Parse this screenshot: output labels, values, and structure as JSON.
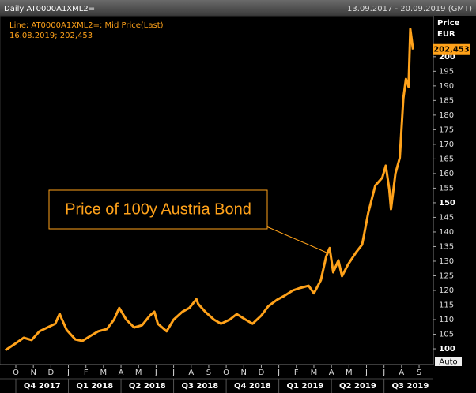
{
  "chart_data": {
    "type": "line",
    "header_left": "Daily AT0000A1XML2=",
    "header_right": "13.09.2017 - 20.09.2019 (GMT)",
    "legend_lines": [
      "Line; AT0000A1XML2=; Mid Price(Last)",
      "16.08.2019; 202,453"
    ],
    "axis_title": [
      "Price",
      "EUR"
    ],
    "annotation": "Price of 100y Austria Bond",
    "auto_label": "Auto",
    "color": "#ffa21a",
    "x": [
      0.4,
      1,
      1.45,
      1.9,
      2.35,
      2.8,
      3.25,
      3.5,
      3.6,
      3.9,
      4.4,
      4.8,
      5.3,
      5.7,
      6.2,
      6.6,
      6.9,
      7.3,
      7.75,
      8.2,
      8.65,
      8.9,
      9.1,
      9.6,
      10,
      10.5,
      10.9,
      11.3,
      11.4,
      11.8,
      12.3,
      12.7,
      13.2,
      13.6,
      14.1,
      14.5,
      15,
      15.4,
      15.9,
      16.3,
      16.8,
      17.2,
      17.7,
      18,
      18.4,
      18.7,
      18.9,
      19.1,
      19.4,
      19.6,
      19.95,
      20.4,
      20.75,
      21.1,
      21.5,
      21.9,
      22.1,
      22.3,
      22.4,
      22.65,
      22.9,
      23.1,
      23.25,
      23.4,
      23.5,
      23.65
    ],
    "values": [
      99.5,
      101.9,
      103.8,
      103,
      106,
      107.3,
      108.6,
      112,
      110.5,
      106.5,
      103.2,
      102.7,
      104.6,
      106,
      106.8,
      110,
      114,
      110,
      107.3,
      108.1,
      111.4,
      112.7,
      108.6,
      106,
      110,
      112.7,
      114,
      117,
      115.4,
      112.7,
      110,
      108.6,
      110,
      111.9,
      110,
      108.6,
      111.4,
      114.6,
      116.8,
      118.1,
      120,
      120.8,
      121.6,
      119,
      123.5,
      131.6,
      134.5,
      126.2,
      130.3,
      124.9,
      128.9,
      133,
      135.7,
      146.5,
      155.9,
      158.6,
      162.7,
      154.6,
      147.8,
      160,
      165.4,
      185.7,
      192.4,
      189.7,
      209.5,
      202.453
    ],
    "price_flag": {
      "value": 202.453,
      "label": "202,453"
    },
    "xlim": [
      0.4,
      24.63
    ],
    "ylim": [
      96.5,
      214
    ],
    "yticks": [
      100,
      105,
      110,
      115,
      120,
      125,
      130,
      135,
      140,
      145,
      150,
      155,
      160,
      165,
      170,
      175,
      180,
      185,
      190,
      195,
      200
    ],
    "bold_yticks": [
      100,
      150,
      200
    ],
    "xticks": [
      {
        "value": 1,
        "label": "O"
      },
      {
        "value": 2,
        "label": "N"
      },
      {
        "value": 3,
        "label": "D"
      },
      {
        "value": 4,
        "label": "J"
      },
      {
        "value": 5,
        "label": "F"
      },
      {
        "value": 6,
        "label": "M"
      },
      {
        "value": 7,
        "label": "A"
      },
      {
        "value": 8,
        "label": "M"
      },
      {
        "value": 9,
        "label": "J"
      },
      {
        "value": 10,
        "label": "J"
      },
      {
        "value": 11,
        "label": "A"
      },
      {
        "value": 12,
        "label": "S"
      },
      {
        "value": 13,
        "label": "O"
      },
      {
        "value": 14,
        "label": "N"
      },
      {
        "value": 15,
        "label": "D"
      },
      {
        "value": 16,
        "label": "J"
      },
      {
        "value": 17,
        "label": "F"
      },
      {
        "value": 18,
        "label": "M"
      },
      {
        "value": 19,
        "label": "A"
      },
      {
        "value": 20,
        "label": "M"
      },
      {
        "value": 21,
        "label": "J"
      },
      {
        "value": 22,
        "label": "J"
      },
      {
        "value": 23,
        "label": "A"
      },
      {
        "value": 24,
        "label": "S"
      }
    ],
    "quarter_ticks": [
      {
        "value": 2.5,
        "label": "Q4 2017"
      },
      {
        "value": 5.5,
        "label": "Q1 2018"
      },
      {
        "value": 8.5,
        "label": "Q2 2018"
      },
      {
        "value": 11.5,
        "label": "Q3 2018"
      },
      {
        "value": 14.5,
        "label": "Q4 2018"
      },
      {
        "value": 17.5,
        "label": "Q1 2019"
      },
      {
        "value": 20.5,
        "label": "Q2 2019"
      },
      {
        "value": 23.5,
        "label": "Q3 2019"
      }
    ]
  }
}
